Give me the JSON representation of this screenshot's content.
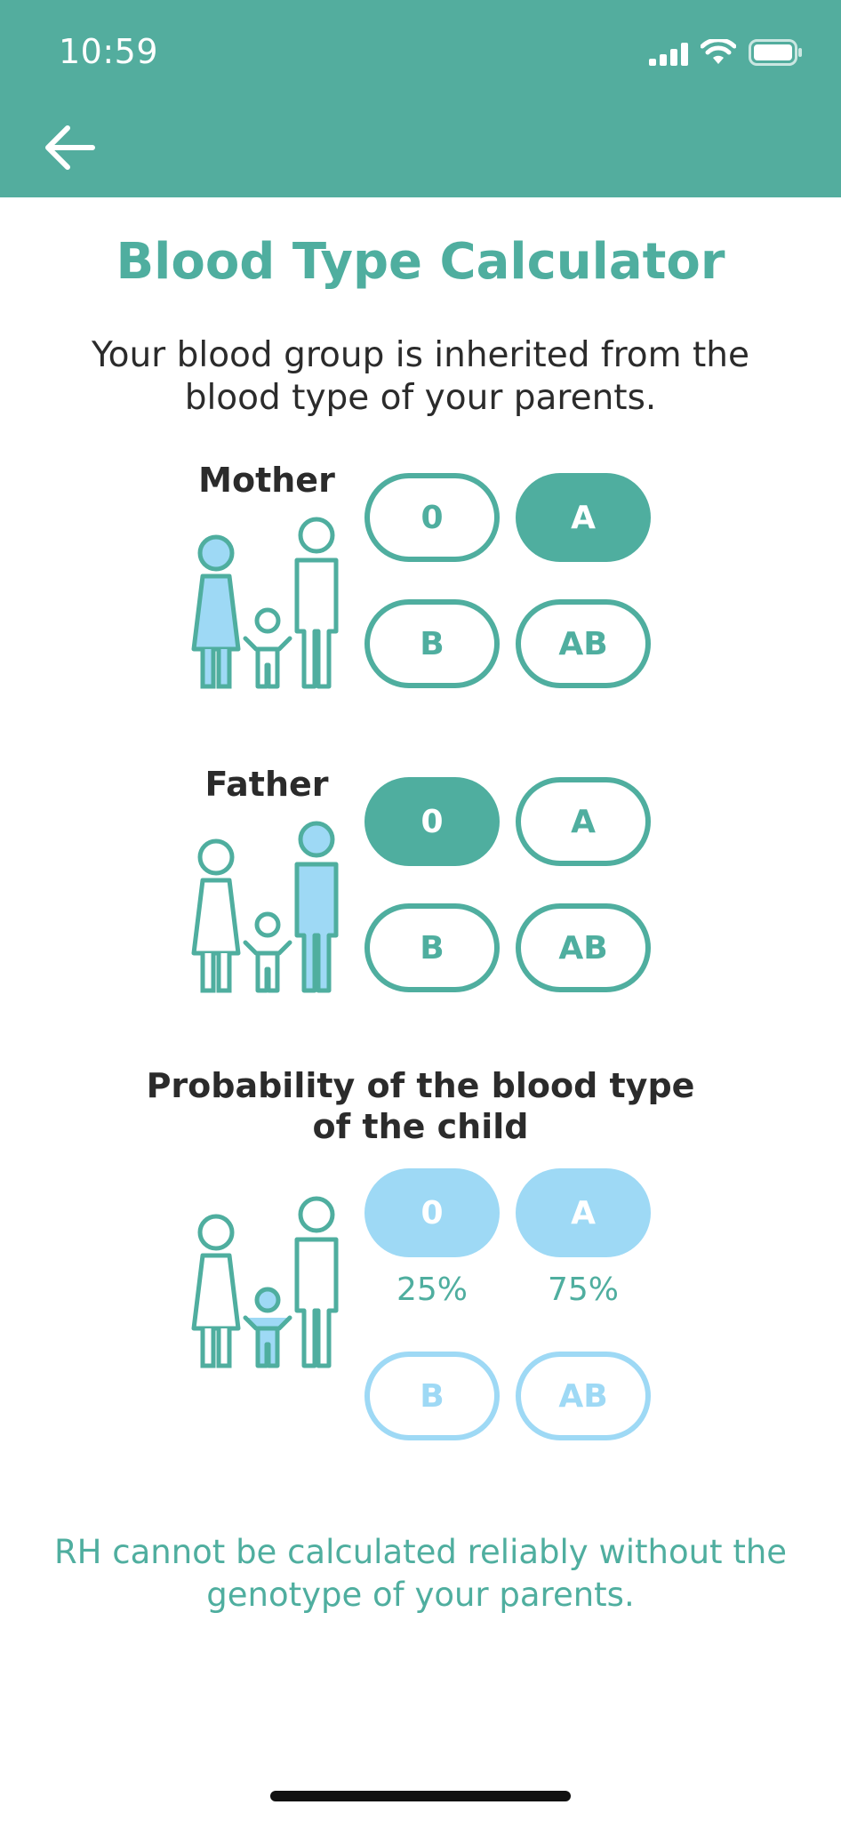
{
  "status_bar": {
    "time": "10:59"
  },
  "header": {
    "title": "Blood Type Calculator",
    "subtitle": "Your blood group is inherited from the blood type of your parents."
  },
  "mother": {
    "label": "Mother",
    "options": [
      "0",
      "A",
      "B",
      "AB"
    ],
    "selected": "A"
  },
  "father": {
    "label": "Father",
    "options": [
      "0",
      "A",
      "B",
      "AB"
    ],
    "selected": "0"
  },
  "child": {
    "label": "Probability of the blood type of the child",
    "results": [
      {
        "type": "0",
        "probability": "25%"
      },
      {
        "type": "A",
        "probability": "75%"
      },
      {
        "type": "B",
        "probability": ""
      },
      {
        "type": "AB",
        "probability": ""
      }
    ]
  },
  "note": "RH cannot be calculated reliably without the genotype of your parents.",
  "colors": {
    "accent": "#4fae9f",
    "header": "#53ad9e",
    "child_highlight": "#9ed9f5"
  },
  "icons": [
    "back-arrow-icon",
    "signal-icon",
    "wifi-icon",
    "battery-icon",
    "family-mother-icon",
    "family-father-icon",
    "family-child-icon"
  ]
}
